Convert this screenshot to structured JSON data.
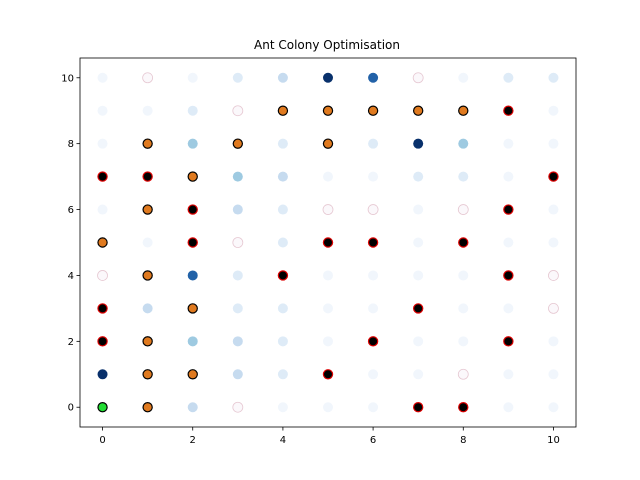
{
  "chart_data": {
    "type": "scatter",
    "title": "Ant Colony Optimisation",
    "xlabel": "",
    "ylabel": "",
    "xlim": [
      -0.5,
      10.5
    ],
    "ylim": [
      -0.6,
      10.6
    ],
    "xticks": [
      0,
      2,
      4,
      6,
      8,
      10
    ],
    "yticks": [
      0,
      2,
      4,
      6,
      8,
      10
    ],
    "grid": false,
    "colors": {
      "start": "#22dd33",
      "path": "#e07a1f",
      "red_outline_dot": "#000000",
      "red_outline": "#dd0000",
      "pheromone_scale": [
        "#f1f6fc",
        "#deebf7",
        "#c6dbef",
        "#9ecae1",
        "#6baed6",
        "#2262a8",
        "#08306b"
      ]
    },
    "start_point": {
      "x": 0,
      "y": 0
    },
    "path_points": [
      {
        "x": 1,
        "y": 0
      },
      {
        "x": 1,
        "y": 1
      },
      {
        "x": 1,
        "y": 2
      },
      {
        "x": 1,
        "y": 4
      },
      {
        "x": 1,
        "y": 6
      },
      {
        "x": 1,
        "y": 8
      },
      {
        "x": 0,
        "y": 5
      },
      {
        "x": 2,
        "y": 1
      },
      {
        "x": 2,
        "y": 3
      },
      {
        "x": 2,
        "y": 7
      },
      {
        "x": 3,
        "y": 8
      },
      {
        "x": 4,
        "y": 9
      },
      {
        "x": 5,
        "y": 9
      },
      {
        "x": 5,
        "y": 8
      },
      {
        "x": 6,
        "y": 9
      },
      {
        "x": 7,
        "y": 9
      },
      {
        "x": 8,
        "y": 9
      }
    ],
    "red_points": [
      {
        "x": 0,
        "y": 2
      },
      {
        "x": 0,
        "y": 3
      },
      {
        "x": 0,
        "y": 7
      },
      {
        "x": 1,
        "y": 7
      },
      {
        "x": 2,
        "y": 5
      },
      {
        "x": 2,
        "y": 6
      },
      {
        "x": 4,
        "y": 4
      },
      {
        "x": 5,
        "y": 1
      },
      {
        "x": 5,
        "y": 5
      },
      {
        "x": 6,
        "y": 2
      },
      {
        "x": 6,
        "y": 5
      },
      {
        "x": 7,
        "y": 0
      },
      {
        "x": 7,
        "y": 3
      },
      {
        "x": 8,
        "y": 0
      },
      {
        "x": 8,
        "y": 5
      },
      {
        "x": 9,
        "y": 2
      },
      {
        "x": 9,
        "y": 4
      },
      {
        "x": 9,
        "y": 6
      },
      {
        "x": 9,
        "y": 9
      },
      {
        "x": 10,
        "y": 7
      }
    ],
    "pheromone_points": [
      {
        "x": 0,
        "y": 1,
        "level": 6
      },
      {
        "x": 0,
        "y": 4,
        "level": -1
      },
      {
        "x": 0,
        "y": 6,
        "level": 0
      },
      {
        "x": 0,
        "y": 8,
        "level": 0
      },
      {
        "x": 0,
        "y": 9,
        "level": 0
      },
      {
        "x": 0,
        "y": 10,
        "level": 0
      },
      {
        "x": 1,
        "y": 3,
        "level": 2
      },
      {
        "x": 1,
        "y": 5,
        "level": 0
      },
      {
        "x": 1,
        "y": 9,
        "level": 0
      },
      {
        "x": 1,
        "y": 10,
        "level": -1
      },
      {
        "x": 2,
        "y": 0,
        "level": 2
      },
      {
        "x": 2,
        "y": 2,
        "level": 3
      },
      {
        "x": 2,
        "y": 4,
        "level": 5
      },
      {
        "x": 2,
        "y": 8,
        "level": 3
      },
      {
        "x": 2,
        "y": 9,
        "level": 1
      },
      {
        "x": 2,
        "y": 10,
        "level": 0
      },
      {
        "x": 3,
        "y": 0,
        "level": -1
      },
      {
        "x": 3,
        "y": 1,
        "level": 2
      },
      {
        "x": 3,
        "y": 2,
        "level": 2
      },
      {
        "x": 3,
        "y": 3,
        "level": 1
      },
      {
        "x": 3,
        "y": 4,
        "level": 1
      },
      {
        "x": 3,
        "y": 5,
        "level": -1
      },
      {
        "x": 3,
        "y": 6,
        "level": 2
      },
      {
        "x": 3,
        "y": 7,
        "level": 3
      },
      {
        "x": 3,
        "y": 9,
        "level": -1
      },
      {
        "x": 3,
        "y": 10,
        "level": 1
      },
      {
        "x": 4,
        "y": 0,
        "level": 0
      },
      {
        "x": 4,
        "y": 1,
        "level": 1
      },
      {
        "x": 4,
        "y": 2,
        "level": 1
      },
      {
        "x": 4,
        "y": 3,
        "level": 1
      },
      {
        "x": 4,
        "y": 5,
        "level": 1
      },
      {
        "x": 4,
        "y": 6,
        "level": 1
      },
      {
        "x": 4,
        "y": 7,
        "level": 2
      },
      {
        "x": 4,
        "y": 8,
        "level": 1
      },
      {
        "x": 4,
        "y": 10,
        "level": 2
      },
      {
        "x": 5,
        "y": 0,
        "level": 0
      },
      {
        "x": 5,
        "y": 2,
        "level": 0
      },
      {
        "x": 5,
        "y": 3,
        "level": 0
      },
      {
        "x": 5,
        "y": 4,
        "level": 0
      },
      {
        "x": 5,
        "y": 6,
        "level": -1
      },
      {
        "x": 5,
        "y": 7,
        "level": 0
      },
      {
        "x": 5,
        "y": 10,
        "level": 6
      },
      {
        "x": 6,
        "y": 0,
        "level": 0
      },
      {
        "x": 6,
        "y": 1,
        "level": 0
      },
      {
        "x": 6,
        "y": 3,
        "level": 0
      },
      {
        "x": 6,
        "y": 4,
        "level": 0
      },
      {
        "x": 6,
        "y": 6,
        "level": -1
      },
      {
        "x": 6,
        "y": 7,
        "level": 0
      },
      {
        "x": 6,
        "y": 8,
        "level": 1
      },
      {
        "x": 6,
        "y": 10,
        "level": 5
      },
      {
        "x": 7,
        "y": 1,
        "level": 0
      },
      {
        "x": 7,
        "y": 2,
        "level": 0
      },
      {
        "x": 7,
        "y": 4,
        "level": 0
      },
      {
        "x": 7,
        "y": 5,
        "level": 0
      },
      {
        "x": 7,
        "y": 6,
        "level": 0
      },
      {
        "x": 7,
        "y": 7,
        "level": 1
      },
      {
        "x": 7,
        "y": 8,
        "level": 6
      },
      {
        "x": 7,
        "y": 10,
        "level": -1
      },
      {
        "x": 8,
        "y": 1,
        "level": -1
      },
      {
        "x": 8,
        "y": 2,
        "level": 0
      },
      {
        "x": 8,
        "y": 3,
        "level": 0
      },
      {
        "x": 8,
        "y": 4,
        "level": 0
      },
      {
        "x": 8,
        "y": 6,
        "level": -1
      },
      {
        "x": 8,
        "y": 7,
        "level": 1
      },
      {
        "x": 8,
        "y": 8,
        "level": 3
      },
      {
        "x": 8,
        "y": 10,
        "level": 0
      },
      {
        "x": 9,
        "y": 0,
        "level": 0
      },
      {
        "x": 9,
        "y": 1,
        "level": 0
      },
      {
        "x": 9,
        "y": 3,
        "level": 0
      },
      {
        "x": 9,
        "y": 5,
        "level": 0
      },
      {
        "x": 9,
        "y": 7,
        "level": 0
      },
      {
        "x": 9,
        "y": 8,
        "level": 0
      },
      {
        "x": 9,
        "y": 10,
        "level": 1
      },
      {
        "x": 10,
        "y": 0,
        "level": 0
      },
      {
        "x": 10,
        "y": 1,
        "level": 0
      },
      {
        "x": 10,
        "y": 2,
        "level": 0
      },
      {
        "x": 10,
        "y": 3,
        "level": -1
      },
      {
        "x": 10,
        "y": 4,
        "level": -1
      },
      {
        "x": 10,
        "y": 5,
        "level": 0
      },
      {
        "x": 10,
        "y": 6,
        "level": 0
      },
      {
        "x": 10,
        "y": 8,
        "level": 0
      },
      {
        "x": 10,
        "y": 9,
        "level": 0
      },
      {
        "x": 10,
        "y": 10,
        "level": 1
      }
    ]
  }
}
